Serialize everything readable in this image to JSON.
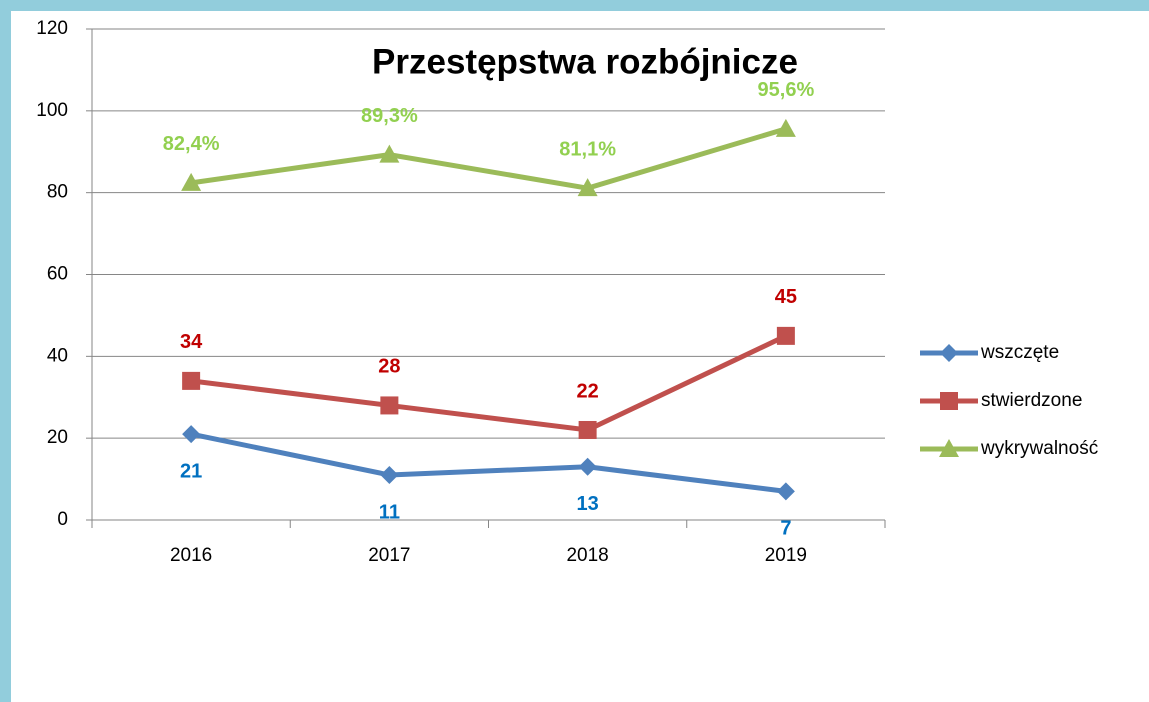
{
  "chart_data": {
    "type": "line",
    "title": "Przestępstwa rozbójnicze",
    "categories": [
      "2016",
      "2017",
      "2018",
      "2019"
    ],
    "series": [
      {
        "name": "wszczęte",
        "color": "#4f81bd",
        "label_color": "#0070c0",
        "marker": "diamond",
        "label_position": "below",
        "values": [
          21,
          11,
          13,
          7
        ]
      },
      {
        "name": "stwierdzone",
        "color": "#c0504d",
        "label_color": "#c00000",
        "marker": "square",
        "label_position": "above",
        "values": [
          34,
          28,
          22,
          45
        ]
      },
      {
        "name": "wykrywalność",
        "color": "#9bbb59",
        "label_color": "#92d050",
        "marker": "triangle",
        "label_position": "above",
        "values": [
          82.4,
          89.3,
          81.1,
          95.6
        ],
        "value_labels": [
          "82,4%",
          "89,3%",
          "81,1%",
          "95,6%"
        ]
      }
    ],
    "ylim": [
      0,
      120
    ],
    "yticks": [
      0,
      20,
      40,
      60,
      80,
      100,
      120
    ],
    "grid": true,
    "legend": "right"
  }
}
